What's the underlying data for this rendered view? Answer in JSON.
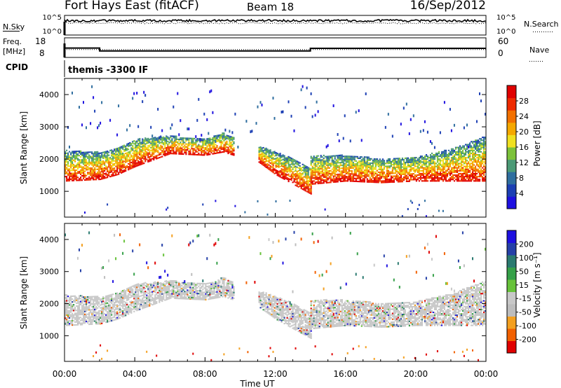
{
  "header": {
    "title": "Fort Hays East (fitACF)",
    "beam": "Beam 18",
    "date": "16/Sep/2012"
  },
  "noise_panel": {
    "left_label": "N.Sky",
    "left_ticks": [
      "10^5",
      "10^0"
    ],
    "right_label": "N.Search",
    "right_ticks": [
      "10^5",
      "10^0"
    ]
  },
  "freq_panel": {
    "left_label_line1": "Freq.",
    "left_label_line2": "[MHz]",
    "left_ticks": [
      "18",
      "8"
    ],
    "right_label": "Nave",
    "right_ticks": [
      "60",
      "0"
    ],
    "freq_steps": [
      {
        "t0": 0.0,
        "t1": 2.0,
        "freq": 12.7
      },
      {
        "t0": 2.0,
        "t1": 14.0,
        "freq": 10.6
      },
      {
        "t0": 14.0,
        "t1": 24.0,
        "freq": 12.5
      }
    ],
    "nave_level": 24
  },
  "cpid": {
    "label": "CPID",
    "text": "themis -3300 IF"
  },
  "colors": {
    "power_scale": [
      "#1e10e0",
      "#1c3fb4",
      "#2f6e9f",
      "#4b9a76",
      "#7cc23a",
      "#f0e020",
      "#f5a800",
      "#f27000",
      "#ee2a00",
      "#e00000"
    ],
    "velocity_scale": [
      "#e00000",
      "#f26000",
      "#f4a020",
      "#bdbdbd",
      "#c8c8c8",
      "#67c23a",
      "#35a048",
      "#2a7a70",
      "#2540a8",
      "#1e10e0"
    ]
  },
  "chart_data": [
    {
      "type": "heatmap",
      "name_hint": "power",
      "ylabel": "Slant Range [km]",
      "yticks": [
        "1000",
        "2000",
        "3000",
        "4000"
      ],
      "ylim": [
        200,
        4500
      ],
      "xlim": [
        0,
        24
      ],
      "colorbar_label": "Power [dB]",
      "colorbar_ticks": [
        "4",
        "8",
        "12",
        "16",
        "20",
        "24",
        "28"
      ],
      "colorbar_range": [
        0,
        32
      ],
      "bands": [
        {
          "x": [
            0.0,
            2.0,
            3.0,
            4.0,
            6.0,
            8.0,
            9.0,
            9.6
          ],
          "y_low": [
            1300,
            1350,
            1500,
            1750,
            2150,
            2100,
            2200,
            2100
          ],
          "y_high": [
            2250,
            2200,
            2350,
            2600,
            2700,
            2600,
            2800,
            2650
          ]
        },
        {
          "x": [
            11.0,
            12.0,
            13.0,
            14.0
          ],
          "y_low": [
            1900,
            1500,
            1200,
            900
          ],
          "y_high": [
            2400,
            2200,
            2000,
            1700
          ]
        },
        {
          "x": [
            14.0,
            16.0,
            18.0,
            20.0,
            22.0,
            24.0
          ],
          "y_low": [
            1200,
            1300,
            1250,
            1300,
            1300,
            1300
          ],
          "y_high": [
            2100,
            2100,
            2000,
            2050,
            2300,
            2700
          ]
        }
      ]
    },
    {
      "type": "heatmap",
      "name_hint": "velocity",
      "ylabel": "Slant Range [km]",
      "yticks": [
        "1000",
        "2000",
        "3000",
        "4000"
      ],
      "ylim": [
        200,
        4500
      ],
      "xlim": [
        0,
        24
      ],
      "xlabel": "Time UT",
      "xticks": [
        "00:00",
        "04:00",
        "08:00",
        "12:00",
        "16:00",
        "20:00",
        "00:00"
      ],
      "colorbar_label": "Velocity [m s⁻¹]",
      "colorbar_ticks": [
        "-200",
        "-100",
        "-50",
        "-15",
        "15",
        "50",
        "100",
        "200"
      ],
      "colorbar_range": [
        -250,
        250
      ],
      "dominant_value": 0
    }
  ]
}
